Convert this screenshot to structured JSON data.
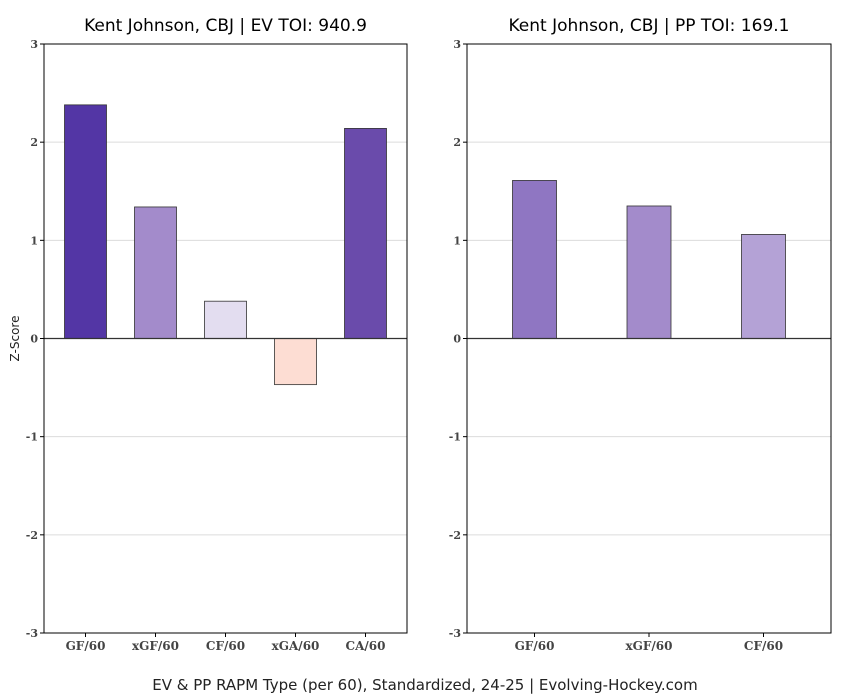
{
  "footer": "EV & PP RAPM Type (per 60), Standardized, 24-25    |    Evolving-Hockey.com",
  "chart_data": [
    {
      "type": "bar",
      "title": "Kent Johnson, CBJ  |  EV TOI: 940.9",
      "ylabel": "Z-Score",
      "ylim": [
        -3,
        3
      ],
      "yticks": [
        3,
        2,
        1,
        0,
        -1,
        -2,
        -3
      ],
      "grid": true,
      "categories": [
        "GF/60",
        "xGF/60",
        "CF/60",
        "xGA/60",
        "CA/60"
      ],
      "values": [
        2.38,
        1.34,
        0.38,
        -0.47,
        2.14
      ],
      "colors": [
        "#5336a5",
        "#a38bcb",
        "#e3ddf0",
        "#fdddd3",
        "#6a4bab"
      ]
    },
    {
      "type": "bar",
      "title": "Kent Johnson, CBJ  |  PP TOI: 169.1",
      "ylabel": "",
      "ylim": [
        -3,
        3
      ],
      "yticks": [
        3,
        2,
        1,
        0,
        -1,
        -2,
        -3
      ],
      "grid": true,
      "categories": [
        "GF/60",
        "xGF/60",
        "CF/60"
      ],
      "values": [
        1.61,
        1.35,
        1.06
      ],
      "colors": [
        "#8f76c2",
        "#a38bcb",
        "#b4a2d6"
      ]
    }
  ]
}
